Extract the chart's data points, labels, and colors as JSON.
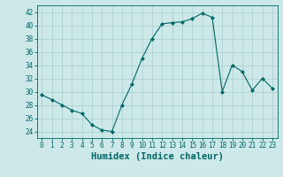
{
  "x": [
    0,
    1,
    2,
    3,
    4,
    5,
    6,
    7,
    8,
    9,
    10,
    11,
    12,
    13,
    14,
    15,
    16,
    17,
    18,
    19,
    20,
    21,
    22,
    23
  ],
  "y": [
    29.5,
    28.8,
    28.0,
    27.2,
    26.7,
    25.0,
    24.2,
    24.0,
    28.0,
    31.2,
    35.0,
    38.0,
    40.2,
    40.4,
    40.5,
    41.0,
    41.8,
    41.2,
    30.0,
    34.0,
    33.0,
    30.2,
    32.0,
    30.5
  ],
  "line_color": "#006666",
  "marker": "D",
  "marker_size": 2,
  "bg_color": "#cce8e8",
  "grid_color": "#aacece",
  "xlabel": "Humidex (Indice chaleur)",
  "ylim": [
    23,
    43
  ],
  "yticks": [
    24,
    26,
    28,
    30,
    32,
    34,
    36,
    38,
    40,
    42
  ],
  "xticks": [
    0,
    1,
    2,
    3,
    4,
    5,
    6,
    7,
    8,
    9,
    10,
    11,
    12,
    13,
    14,
    15,
    16,
    17,
    18,
    19,
    20,
    21,
    22,
    23
  ],
  "xlim": [
    -0.5,
    23.5
  ],
  "tick_fontsize": 5.5,
  "xlabel_fontsize": 7.5
}
